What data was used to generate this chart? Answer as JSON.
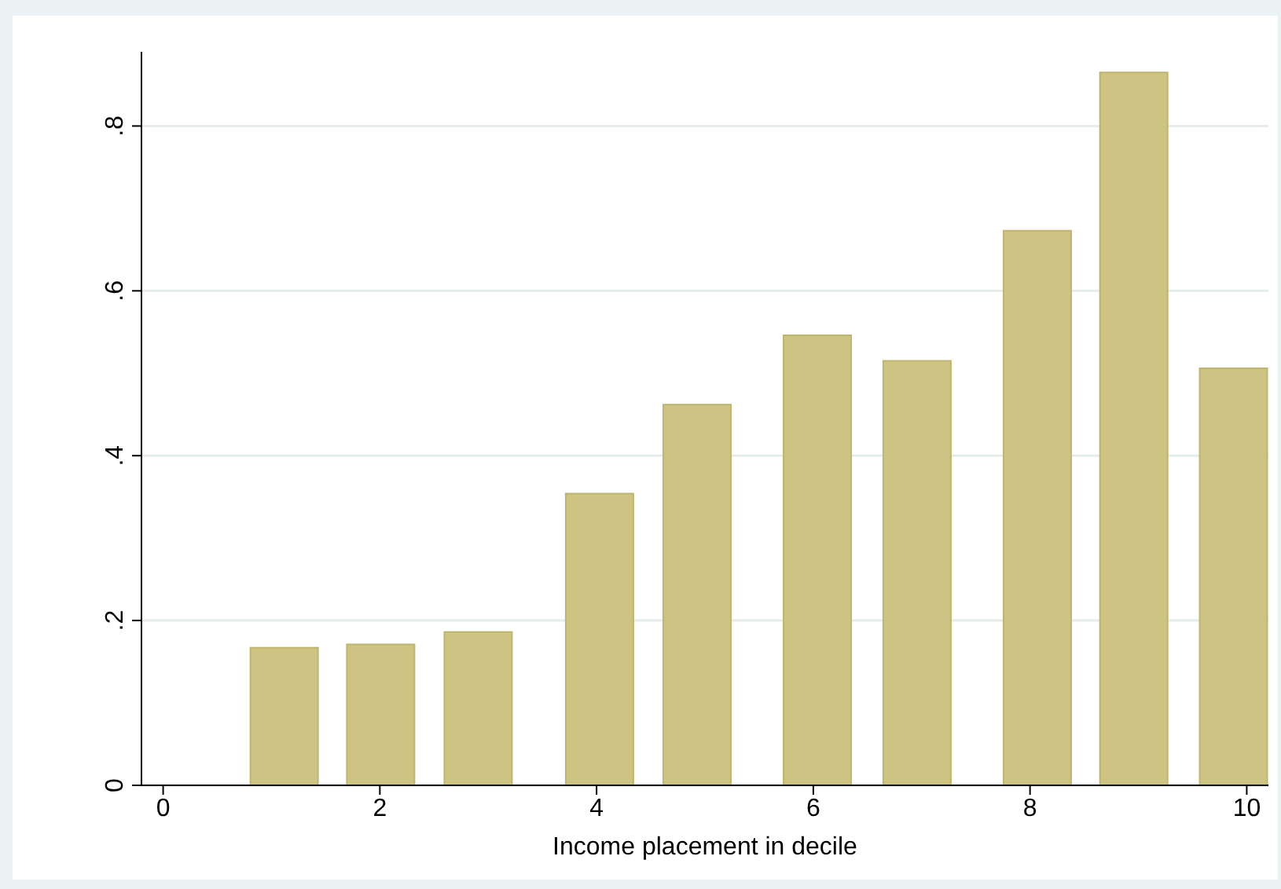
{
  "chart_data": {
    "type": "bar",
    "xlabel": "Income placement in decile",
    "x": [
      1.12,
      2.01,
      2.91,
      4.03,
      4.93,
      6.04,
      6.96,
      8.07,
      8.96,
      9.88
    ],
    "values": [
      0.167,
      0.171,
      0.186,
      0.354,
      0.462,
      0.546,
      0.515,
      0.673,
      0.865,
      0.506
    ],
    "color": "#cdc383",
    "xlim": [
      -0.2,
      10.2
    ],
    "xticks": [
      0,
      2,
      4,
      6,
      8,
      10
    ],
    "ylim": [
      0,
      0.89
    ],
    "yticks": [
      0,
      {
        "value": 0.2,
        "label": ".2"
      },
      {
        "value": 0.4,
        "label": ".4"
      },
      {
        "value": 0.6,
        "label": ".6"
      },
      {
        "value": 0.8,
        "label": ".8"
      }
    ],
    "grid": "y"
  }
}
